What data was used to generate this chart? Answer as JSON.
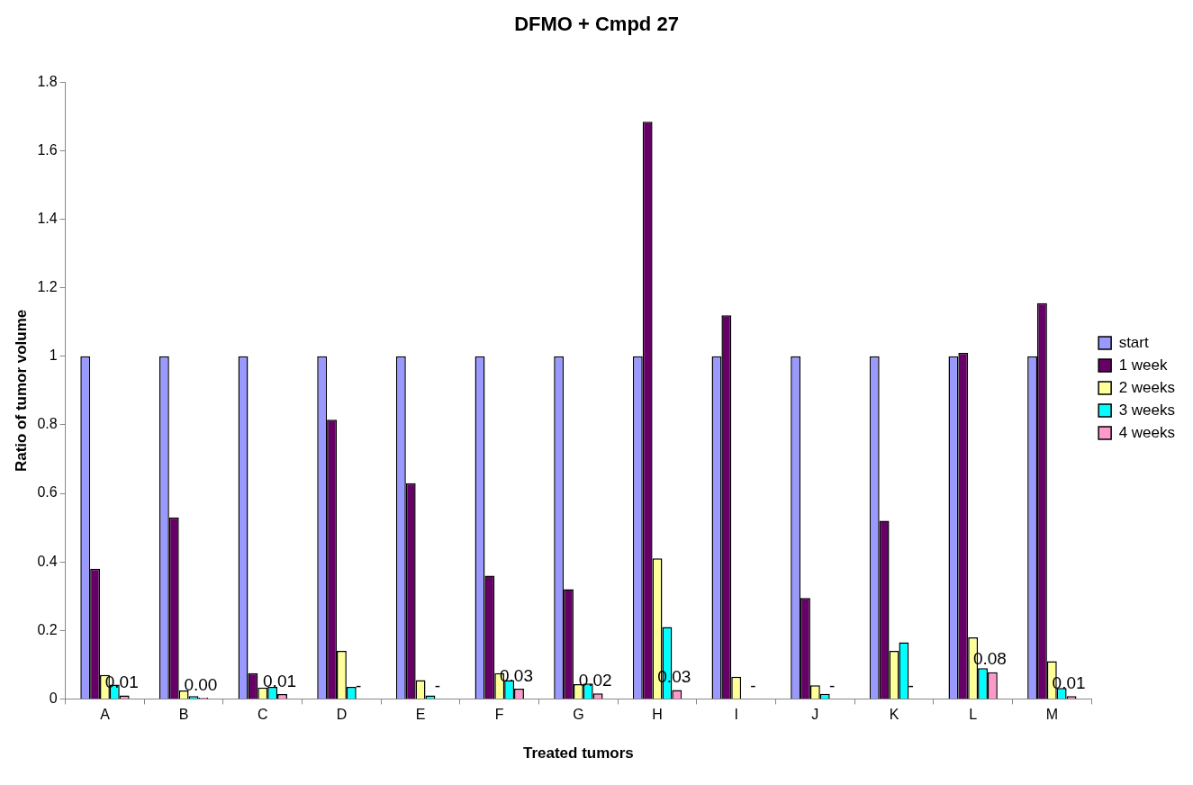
{
  "chart_data": {
    "type": "bar",
    "title": "DFMO + Cmpd 27",
    "xlabel": "Treated tumors",
    "ylabel": "Ratio of tumor volume",
    "categories": [
      "A",
      "B",
      "C",
      "D",
      "E",
      "F",
      "G",
      "H",
      "I",
      "J",
      "K",
      "L",
      "M"
    ],
    "series": [
      {
        "name": "start",
        "color": "#9999ff",
        "values": [
          1,
          1,
          1,
          1,
          1,
          1,
          1,
          1,
          1,
          1,
          1,
          1,
          1
        ]
      },
      {
        "name": "1 week",
        "color": "#660066",
        "values": [
          0.38,
          0.53,
          0.075,
          0.815,
          0.63,
          0.36,
          0.32,
          1.685,
          1.12,
          0.295,
          0.52,
          1.01,
          1.155
        ]
      },
      {
        "name": "2 weeks",
        "color": "#ffff99",
        "values": [
          0.07,
          0.025,
          0.033,
          0.14,
          0.055,
          0.075,
          0.043,
          0.41,
          0.065,
          0.04,
          0.14,
          0.18,
          0.11
        ]
      },
      {
        "name": "3 weeks",
        "color": "#00ffff",
        "values": [
          0.042,
          0.008,
          0.035,
          0.035,
          0.01,
          0.055,
          0.045,
          0.21,
          null,
          0.015,
          0.165,
          0.09,
          0.032
        ]
      },
      {
        "name": "4 weeks",
        "color": "#ff99cc",
        "values": [
          0.01,
          0.004,
          0.014,
          null,
          null,
          0.03,
          0.016,
          0.026,
          null,
          null,
          null,
          0.078,
          0.008
        ],
        "value_labels": [
          "0.01",
          "0.00",
          "0.01",
          "-",
          "-",
          "0.03",
          "0.02",
          "0.03",
          "-",
          "-",
          "-",
          "0.08",
          "0.01"
        ]
      }
    ],
    "ylim": [
      0,
      1.8
    ],
    "yticks": [
      0,
      0.2,
      0.4,
      0.6,
      0.8,
      1,
      1.2,
      1.4,
      1.6,
      1.8
    ],
    "grid": false,
    "legend": "right"
  }
}
